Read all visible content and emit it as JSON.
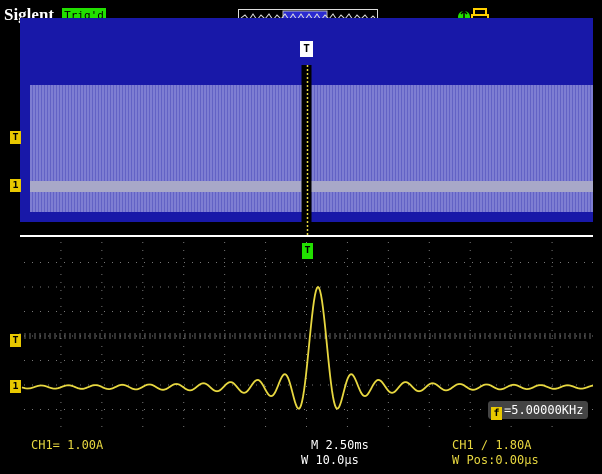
{
  "header": {
    "brand": "Siglent",
    "trigger_status": "Trig'd"
  },
  "waveform": {
    "frequency_readout": "=5.00000KHz"
  },
  "status": {
    "ch1_scale": "CH1= 1.00A",
    "main_timebase": "M 2.50ms",
    "window_timebase": "W 10.0µs",
    "trigger_info": "CH1 ∕ 1.80A",
    "window_position": "W Pos:0.00µs"
  },
  "markers": {
    "trigger_marker": "T",
    "channel_marker": "1"
  },
  "colors": {
    "trace": "#e8d840",
    "window_bg": "#1818a8",
    "trigger_green": "#22e000",
    "grid": "#8a8a8a"
  }
}
